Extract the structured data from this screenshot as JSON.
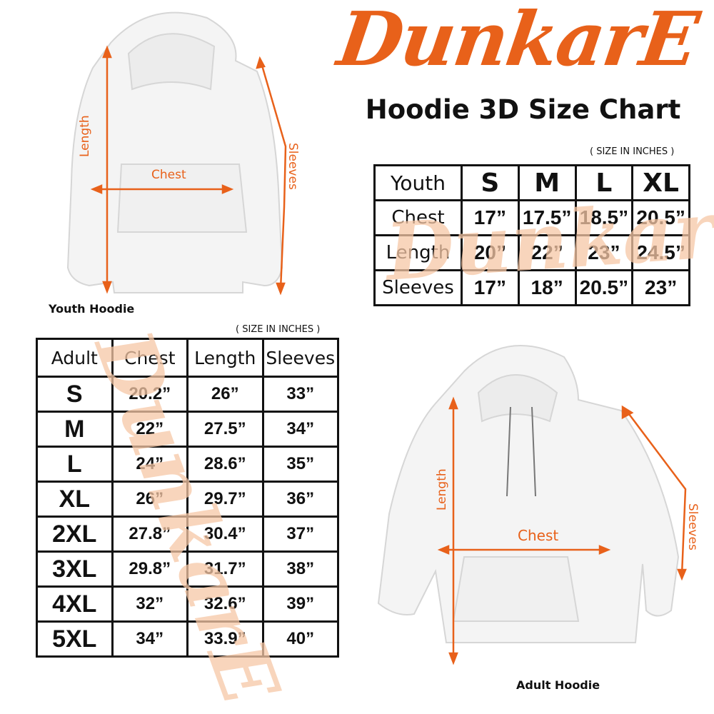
{
  "brand": {
    "logo_text": "DunkarE",
    "accent_color": "#e8611a"
  },
  "title": "Hoodie 3D Size Chart",
  "youth_hoodie": {
    "caption": "Youth Hoodie",
    "labels": {
      "length": "Length",
      "chest": "Chest",
      "sleeves": "Sleeves"
    }
  },
  "adult_hoodie": {
    "caption": "Adult Hoodie",
    "labels": {
      "length": "Length",
      "chest": "Chest",
      "sleeves": "Sleeves"
    }
  },
  "youth_table": {
    "unit_note": "( SIZE IN INCHES )",
    "header": [
      "Youth",
      "S",
      "M",
      "L",
      "XL"
    ],
    "rows": [
      [
        "Chest",
        "17”",
        "17.5”",
        "18.5”",
        "20.5”"
      ],
      [
        "Length",
        "20”",
        "22”",
        "23”",
        "24.5”"
      ],
      [
        "Sleeves",
        "17”",
        "18”",
        "20.5”",
        "23”"
      ]
    ]
  },
  "adult_table": {
    "unit_note": "( SIZE IN INCHES )",
    "header": [
      "Adult",
      "Chest",
      "Length",
      "Sleeves"
    ],
    "rows": [
      [
        "S",
        "20.2”",
        "26”",
        "33”"
      ],
      [
        "M",
        "22”",
        "27.5”",
        "34”"
      ],
      [
        "L",
        "24”",
        "28.6”",
        "35”"
      ],
      [
        "XL",
        "26”",
        "29.7”",
        "36”"
      ],
      [
        "2XL",
        "27.8”",
        "30.4”",
        "37”"
      ],
      [
        "3XL",
        "29.8”",
        "31.7”",
        "38”"
      ],
      [
        "4XL",
        "32”",
        "32.6”",
        "39”"
      ],
      [
        "5XL",
        "34”",
        "33.9”",
        "40”"
      ]
    ]
  }
}
